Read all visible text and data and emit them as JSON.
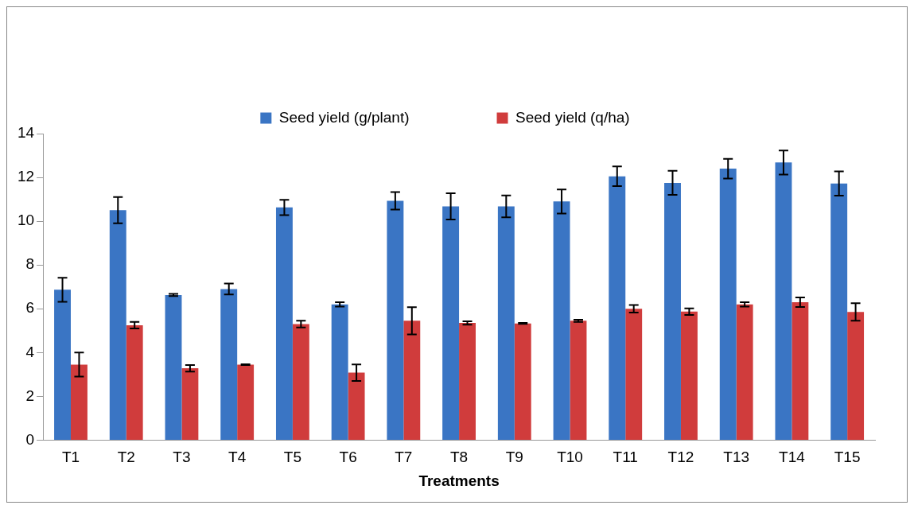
{
  "chart_data": {
    "type": "bar",
    "xlabel": "Treatments",
    "categories": [
      "T1",
      "T2",
      "T3",
      "T4",
      "T5",
      "T6",
      "T7",
      "T8",
      "T9",
      "T10",
      "T11",
      "T12",
      "T13",
      "T14",
      "T15"
    ],
    "series": [
      {
        "name": "Seed yield (g/plant)",
        "color": "#3a75c4",
        "values": [
          6.87,
          10.5,
          6.63,
          6.9,
          10.63,
          6.2,
          10.93,
          10.68,
          10.68,
          10.9,
          12.05,
          11.75,
          12.4,
          12.68,
          11.72
        ],
        "errors": [
          0.55,
          0.6,
          0.05,
          0.25,
          0.35,
          0.1,
          0.4,
          0.6,
          0.5,
          0.55,
          0.45,
          0.55,
          0.45,
          0.55,
          0.55
        ]
      },
      {
        "name": "Seed yield (q/ha)",
        "color": "#d03c3c",
        "values": [
          3.45,
          5.25,
          3.28,
          3.45,
          5.3,
          3.08,
          5.45,
          5.35,
          5.33,
          5.45,
          6.0,
          5.87,
          6.2,
          6.3,
          5.85
        ],
        "errors": [
          0.55,
          0.15,
          0.15,
          0.02,
          0.15,
          0.38,
          0.62,
          0.08,
          0.02,
          0.05,
          0.17,
          0.15,
          0.1,
          0.22,
          0.4
        ]
      }
    ],
    "ylim": [
      0,
      14
    ],
    "yticks": [
      0,
      2,
      4,
      6,
      8,
      10,
      12,
      14
    ],
    "grid": false,
    "legend": "top"
  }
}
